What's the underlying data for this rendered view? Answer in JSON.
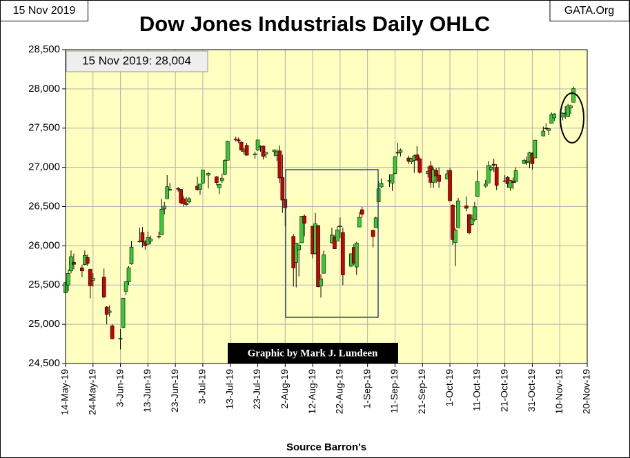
{
  "chart_data": {
    "type": "candlestick",
    "title": "Dow Jones Industrials Daily OHLC",
    "date_label": "15 Nov 2019",
    "site": "GATA.Org",
    "last_label": "15 Nov 2019: 28,004",
    "credit": "Graphic by Mark J. Lundeen",
    "xlabel": "Source Barron's",
    "up_color": "#33cc33",
    "down_color": "#cc0000",
    "grid": true,
    "ylim": [
      24500,
      28500
    ],
    "yticks": [
      {
        "value": 24500,
        "label": "24,500"
      },
      {
        "value": 25000,
        "label": "25,000"
      },
      {
        "value": 25500,
        "label": "25,500"
      },
      {
        "value": 26000,
        "label": "26,000"
      },
      {
        "value": 26500,
        "label": "26,500"
      },
      {
        "value": 27000,
        "label": "27,000"
      },
      {
        "value": 27500,
        "label": "27,500"
      },
      {
        "value": 28000,
        "label": "28,000"
      },
      {
        "value": 28500,
        "label": "28,500"
      }
    ],
    "xlim": [
      "2019-05-14",
      "2019-11-20"
    ],
    "xticks": [
      {
        "value": "2019-05-14",
        "label": "14-May-19"
      },
      {
        "value": "2019-05-24",
        "label": "24-May-19"
      },
      {
        "value": "2019-06-03",
        "label": "3-Jun-19"
      },
      {
        "value": "2019-06-13",
        "label": "13-Jun-19"
      },
      {
        "value": "2019-06-23",
        "label": "23-Jun-19"
      },
      {
        "value": "2019-07-03",
        "label": "3-Jul-19"
      },
      {
        "value": "2019-07-13",
        "label": "13-Jul-19"
      },
      {
        "value": "2019-07-23",
        "label": "23-Jul-19"
      },
      {
        "value": "2019-08-02",
        "label": "2-Aug-19"
      },
      {
        "value": "2019-08-12",
        "label": "12-Aug-19"
      },
      {
        "value": "2019-08-22",
        "label": "22-Aug-19"
      },
      {
        "value": "2019-09-01",
        "label": "1-Sep-19"
      },
      {
        "value": "2019-09-11",
        "label": "11-Sep-19"
      },
      {
        "value": "2019-09-21",
        "label": "21-Sep-19"
      },
      {
        "value": "2019-10-01",
        "label": "1-Oct-19"
      },
      {
        "value": "2019-10-11",
        "label": "11-Oct-19"
      },
      {
        "value": "2019-10-21",
        "label": "21-Oct-19"
      },
      {
        "value": "2019-10-31",
        "label": "31-Oct-19"
      },
      {
        "value": "2019-11-10",
        "label": "10-Nov-19"
      },
      {
        "value": "2019-11-20",
        "label": "20-Nov-19"
      }
    ],
    "x": [
      "2019-05-14",
      "2019-05-15",
      "2019-05-16",
      "2019-05-17",
      "2019-05-20",
      "2019-05-21",
      "2019-05-22",
      "2019-05-23",
      "2019-05-24",
      "2019-05-28",
      "2019-05-29",
      "2019-05-30",
      "2019-05-31",
      "2019-06-03",
      "2019-06-04",
      "2019-06-05",
      "2019-06-06",
      "2019-06-07",
      "2019-06-10",
      "2019-06-11",
      "2019-06-12",
      "2019-06-13",
      "2019-06-14",
      "2019-06-17",
      "2019-06-18",
      "2019-06-19",
      "2019-06-20",
      "2019-06-21",
      "2019-06-24",
      "2019-06-25",
      "2019-06-26",
      "2019-06-27",
      "2019-06-28",
      "2019-07-01",
      "2019-07-02",
      "2019-07-03",
      "2019-07-05",
      "2019-07-08",
      "2019-07-09",
      "2019-07-10",
      "2019-07-11",
      "2019-07-12",
      "2019-07-15",
      "2019-07-16",
      "2019-07-17",
      "2019-07-18",
      "2019-07-19",
      "2019-07-22",
      "2019-07-23",
      "2019-07-24",
      "2019-07-25",
      "2019-07-26",
      "2019-07-29",
      "2019-07-30",
      "2019-07-31",
      "2019-08-01",
      "2019-08-02",
      "2019-08-05",
      "2019-08-06",
      "2019-08-07",
      "2019-08-08",
      "2019-08-09",
      "2019-08-12",
      "2019-08-13",
      "2019-08-14",
      "2019-08-15",
      "2019-08-16",
      "2019-08-19",
      "2019-08-20",
      "2019-08-21",
      "2019-08-22",
      "2019-08-23",
      "2019-08-26",
      "2019-08-27",
      "2019-08-28",
      "2019-08-29",
      "2019-08-30",
      "2019-09-03",
      "2019-09-04",
      "2019-09-05",
      "2019-09-06",
      "2019-09-09",
      "2019-09-10",
      "2019-09-11",
      "2019-09-12",
      "2019-09-13",
      "2019-09-16",
      "2019-09-17",
      "2019-09-18",
      "2019-09-19",
      "2019-09-20",
      "2019-09-23",
      "2019-09-24",
      "2019-09-25",
      "2019-09-26",
      "2019-09-27",
      "2019-09-30",
      "2019-10-01",
      "2019-10-02",
      "2019-10-03",
      "2019-10-04",
      "2019-10-07",
      "2019-10-08",
      "2019-10-09",
      "2019-10-10",
      "2019-10-11",
      "2019-10-14",
      "2019-10-15",
      "2019-10-16",
      "2019-10-17",
      "2019-10-18",
      "2019-10-21",
      "2019-10-22",
      "2019-10-23",
      "2019-10-24",
      "2019-10-25",
      "2019-10-28",
      "2019-10-29",
      "2019-10-30",
      "2019-10-31",
      "2019-11-01",
      "2019-11-04",
      "2019-11-05",
      "2019-11-06",
      "2019-11-07",
      "2019-11-08",
      "2019-11-11",
      "2019-11-12",
      "2019-11-13",
      "2019-11-14",
      "2019-11-15"
    ],
    "open": [
      25400,
      25500,
      25680,
      25790,
      25720,
      25760,
      25850,
      25700,
      25560,
      25600,
      25220,
      25150,
      24980,
      24810,
      24960,
      25420,
      25540,
      25770,
      26050,
      26170,
      26050,
      26020,
      26060,
      26120,
      26140,
      26470,
      26600,
      26720,
      26730,
      26720,
      26600,
      26540,
      26560,
      26760,
      26720,
      26800,
      26900,
      26880,
      26740,
      26830,
      26910,
      27090,
      27350,
      27350,
      27320,
      27200,
      27280,
      27160,
      27220,
      27260,
      27270,
      27170,
      27200,
      27150,
      27210,
      26870,
      26590,
      26120,
      25790,
      25950,
      26040,
      26380,
      26250,
      25900,
      26260,
      25490,
      25650,
      26040,
      26110,
      26060,
      26250,
      26170,
      25740,
      25980,
      25730,
      26240,
      26460,
      26200,
      26230,
      26560,
      26750,
      26820,
      26800,
      26920,
      27190,
      27190,
      27120,
      27070,
      27090,
      27160,
      27110,
      26920,
      27020,
      26810,
      26960,
      26900,
      26850,
      26960,
      26520,
      26040,
      26230,
      26510,
      26400,
      26270,
      26330,
      26630,
      26760,
      26800,
      26970,
      27040,
      27000,
      26820,
      26870,
      26740,
      26820,
      26820,
      27050,
      27070,
      27070,
      27180,
      27120,
      27400,
      27500,
      27470,
      27560,
      27630,
      27640,
      27690,
      27650,
      27760,
      27830
    ],
    "high": [
      25680,
      25700,
      25940,
      25900,
      25760,
      25940,
      25890,
      25710,
      25650,
      25710,
      25230,
      25240,
      25000,
      24940,
      25340,
      25550,
      25740,
      26060,
      26230,
      26240,
      26070,
      26180,
      26130,
      26180,
      26600,
      26560,
      26900,
      26800,
      26750,
      26720,
      26640,
      26620,
      26620,
      26880,
      26790,
      26970,
      26940,
      26890,
      26790,
      26920,
      27100,
      27340,
      27390,
      27380,
      27330,
      27250,
      27310,
      27200,
      27350,
      27280,
      27280,
      27200,
      27230,
      27230,
      27280,
      27160,
      26600,
      26150,
      26040,
      26040,
      26380,
      26400,
      26250,
      26420,
      26260,
      25640,
      25940,
      26230,
      26140,
      26250,
      26360,
      26230,
      25900,
      26020,
      26050,
      26430,
      26500,
      26200,
      26370,
      26830,
      26860,
      26910,
      26910,
      27140,
      27310,
      27240,
      27150,
      27120,
      27160,
      27270,
      27140,
      27010,
      27080,
      27000,
      26990,
      27000,
      26970,
      26990,
      26530,
      26220,
      26610,
      26630,
      26400,
      26400,
      26560,
      26960,
      26840,
      27080,
      27030,
      27110,
      27040,
      26900,
      26890,
      26840,
      26870,
      27000,
      27110,
      27140,
      27200,
      27190,
      27350,
      27520,
      27560,
      27500,
      27700,
      27690,
      27700,
      27780,
      27810,
      27800,
      28030
    ],
    "low": [
      25330,
      25420,
      25650,
      25700,
      25600,
      25750,
      25740,
      25330,
      25480,
      25330,
      25000,
      25100,
      24810,
      24680,
      24950,
      25370,
      25500,
      25760,
      26040,
      25980,
      25950,
      26020,
      26020,
      26090,
      26140,
      26400,
      26600,
      26700,
      26690,
      26530,
      26500,
      26510,
      26540,
      26700,
      26650,
      26790,
      26730,
      26770,
      26660,
      26800,
      26900,
      27090,
      27330,
      27310,
      27200,
      27160,
      27150,
      27110,
      27210,
      27200,
      27100,
      27120,
      27140,
      27080,
      26800,
      26420,
      26250,
      25480,
      25470,
      25610,
      26040,
      26120,
      25840,
      25890,
      25470,
      25340,
      25650,
      26030,
      25960,
      26060,
      26100,
      25500,
      25730,
      25750,
      25630,
      26240,
      26360,
      25980,
      26230,
      26560,
      26740,
      26750,
      26700,
      26910,
      27140,
      27140,
      27040,
      27040,
      26930,
      27080,
      26920,
      26870,
      26740,
      26740,
      26800,
      26740,
      26850,
      26570,
      26010,
      25740,
      26230,
      26440,
      26150,
      26260,
      26310,
      26630,
      26740,
      26800,
      26950,
      26940,
      26710,
      26810,
      26740,
      26700,
      26720,
      26800,
      27040,
      27030,
      26990,
      26970,
      27120,
      27400,
      27480,
      27410,
      27560,
      27590,
      27600,
      27620,
      27640,
      27680,
      27830
    ],
    "close": [
      25532,
      25648,
      25862,
      25764,
      25680,
      25877,
      25776,
      25490,
      25586,
      25347,
      25126,
      25169,
      24815,
      24820,
      25332,
      25540,
      25720,
      25984,
      26062,
      26049,
      26005,
      26107,
      26090,
      26112,
      26466,
      26504,
      26753,
      26720,
      26727,
      26548,
      26537,
      26527,
      26600,
      26718,
      26787,
      26966,
      26922,
      26806,
      26784,
      26860,
      27088,
      27332,
      27359,
      27336,
      27220,
      27223,
      27154,
      27172,
      27349,
      27270,
      27140,
      27192,
      27221,
      27198,
      26864,
      26583,
      26485,
      25718,
      26030,
      26008,
      26378,
      26287,
      25897,
      26280,
      25479,
      25579,
      25886,
      26136,
      25962,
      26202,
      26252,
      25629,
      25899,
      25778,
      26036,
      26363,
      26403,
      26118,
      26356,
      26728,
      26797,
      26836,
      26909,
      27137,
      27182,
      27220,
      27076,
      27111,
      27147,
      27094,
      26935,
      26950,
      26808,
      26970,
      26891,
      26820,
      26917,
      26573,
      26079,
      26202,
      26573,
      26478,
      26165,
      26347,
      26497,
      26817,
      26787,
      27025,
      27002,
      27026,
      26770,
      26828,
      26788,
      26834,
      26806,
      26959,
      27091,
      27071,
      27186,
      27046,
      27347,
      27462,
      27492,
      27492,
      27675,
      27681,
      27691,
      27691,
      27784,
      27782,
      28004
    ]
  }
}
